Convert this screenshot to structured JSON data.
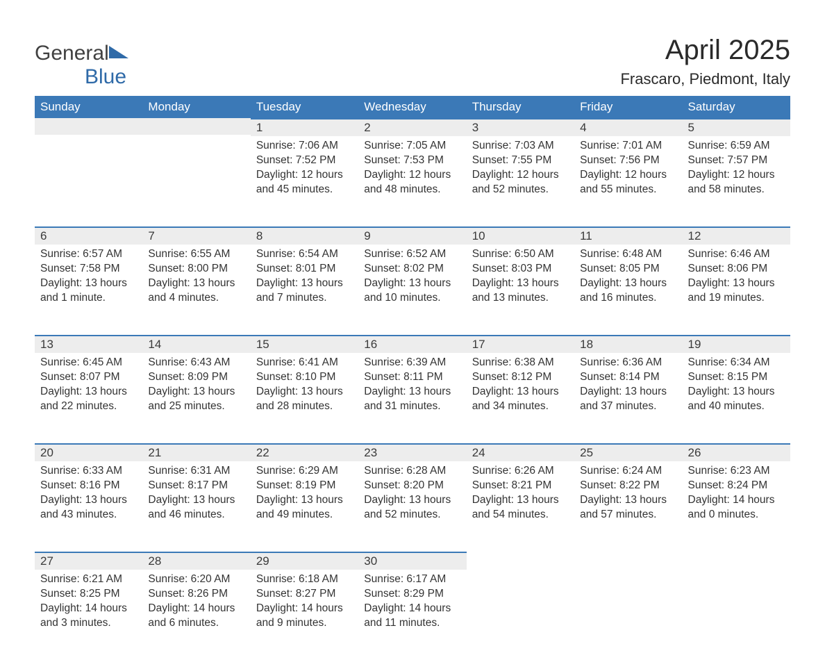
{
  "logo": {
    "word1": "General",
    "word2": "Blue"
  },
  "title": "April 2025",
  "subtitle": "Frascaro, Piedmont, Italy",
  "colors": {
    "header_bg": "#3b79b7",
    "header_text": "#ffffff",
    "daynum_bg": "#ededed",
    "daynum_border": "#3b79b7",
    "text": "#333333",
    "logo_blue": "#2f6aa8"
  },
  "day_headers": [
    "Sunday",
    "Monday",
    "Tuesday",
    "Wednesday",
    "Thursday",
    "Friday",
    "Saturday"
  ],
  "weeks": [
    [
      null,
      null,
      {
        "n": "1",
        "sr": "7:06 AM",
        "ss": "7:52 PM",
        "dl": "12 hours and 45 minutes."
      },
      {
        "n": "2",
        "sr": "7:05 AM",
        "ss": "7:53 PM",
        "dl": "12 hours and 48 minutes."
      },
      {
        "n": "3",
        "sr": "7:03 AM",
        "ss": "7:55 PM",
        "dl": "12 hours and 52 minutes."
      },
      {
        "n": "4",
        "sr": "7:01 AM",
        "ss": "7:56 PM",
        "dl": "12 hours and 55 minutes."
      },
      {
        "n": "5",
        "sr": "6:59 AM",
        "ss": "7:57 PM",
        "dl": "12 hours and 58 minutes."
      }
    ],
    [
      {
        "n": "6",
        "sr": "6:57 AM",
        "ss": "7:58 PM",
        "dl": "13 hours and 1 minute."
      },
      {
        "n": "7",
        "sr": "6:55 AM",
        "ss": "8:00 PM",
        "dl": "13 hours and 4 minutes."
      },
      {
        "n": "8",
        "sr": "6:54 AM",
        "ss": "8:01 PM",
        "dl": "13 hours and 7 minutes."
      },
      {
        "n": "9",
        "sr": "6:52 AM",
        "ss": "8:02 PM",
        "dl": "13 hours and 10 minutes."
      },
      {
        "n": "10",
        "sr": "6:50 AM",
        "ss": "8:03 PM",
        "dl": "13 hours and 13 minutes."
      },
      {
        "n": "11",
        "sr": "6:48 AM",
        "ss": "8:05 PM",
        "dl": "13 hours and 16 minutes."
      },
      {
        "n": "12",
        "sr": "6:46 AM",
        "ss": "8:06 PM",
        "dl": "13 hours and 19 minutes."
      }
    ],
    [
      {
        "n": "13",
        "sr": "6:45 AM",
        "ss": "8:07 PM",
        "dl": "13 hours and 22 minutes."
      },
      {
        "n": "14",
        "sr": "6:43 AM",
        "ss": "8:09 PM",
        "dl": "13 hours and 25 minutes."
      },
      {
        "n": "15",
        "sr": "6:41 AM",
        "ss": "8:10 PM",
        "dl": "13 hours and 28 minutes."
      },
      {
        "n": "16",
        "sr": "6:39 AM",
        "ss": "8:11 PM",
        "dl": "13 hours and 31 minutes."
      },
      {
        "n": "17",
        "sr": "6:38 AM",
        "ss": "8:12 PM",
        "dl": "13 hours and 34 minutes."
      },
      {
        "n": "18",
        "sr": "6:36 AM",
        "ss": "8:14 PM",
        "dl": "13 hours and 37 minutes."
      },
      {
        "n": "19",
        "sr": "6:34 AM",
        "ss": "8:15 PM",
        "dl": "13 hours and 40 minutes."
      }
    ],
    [
      {
        "n": "20",
        "sr": "6:33 AM",
        "ss": "8:16 PM",
        "dl": "13 hours and 43 minutes."
      },
      {
        "n": "21",
        "sr": "6:31 AM",
        "ss": "8:17 PM",
        "dl": "13 hours and 46 minutes."
      },
      {
        "n": "22",
        "sr": "6:29 AM",
        "ss": "8:19 PM",
        "dl": "13 hours and 49 minutes."
      },
      {
        "n": "23",
        "sr": "6:28 AM",
        "ss": "8:20 PM",
        "dl": "13 hours and 52 minutes."
      },
      {
        "n": "24",
        "sr": "6:26 AM",
        "ss": "8:21 PM",
        "dl": "13 hours and 54 minutes."
      },
      {
        "n": "25",
        "sr": "6:24 AM",
        "ss": "8:22 PM",
        "dl": "13 hours and 57 minutes."
      },
      {
        "n": "26",
        "sr": "6:23 AM",
        "ss": "8:24 PM",
        "dl": "14 hours and 0 minutes."
      }
    ],
    [
      {
        "n": "27",
        "sr": "6:21 AM",
        "ss": "8:25 PM",
        "dl": "14 hours and 3 minutes."
      },
      {
        "n": "28",
        "sr": "6:20 AM",
        "ss": "8:26 PM",
        "dl": "14 hours and 6 minutes."
      },
      {
        "n": "29",
        "sr": "6:18 AM",
        "ss": "8:27 PM",
        "dl": "14 hours and 9 minutes."
      },
      {
        "n": "30",
        "sr": "6:17 AM",
        "ss": "8:29 PM",
        "dl": "14 hours and 11 minutes."
      },
      null,
      null,
      null
    ]
  ],
  "labels": {
    "sunrise": "Sunrise: ",
    "sunset": "Sunset: ",
    "daylight": "Daylight: "
  }
}
